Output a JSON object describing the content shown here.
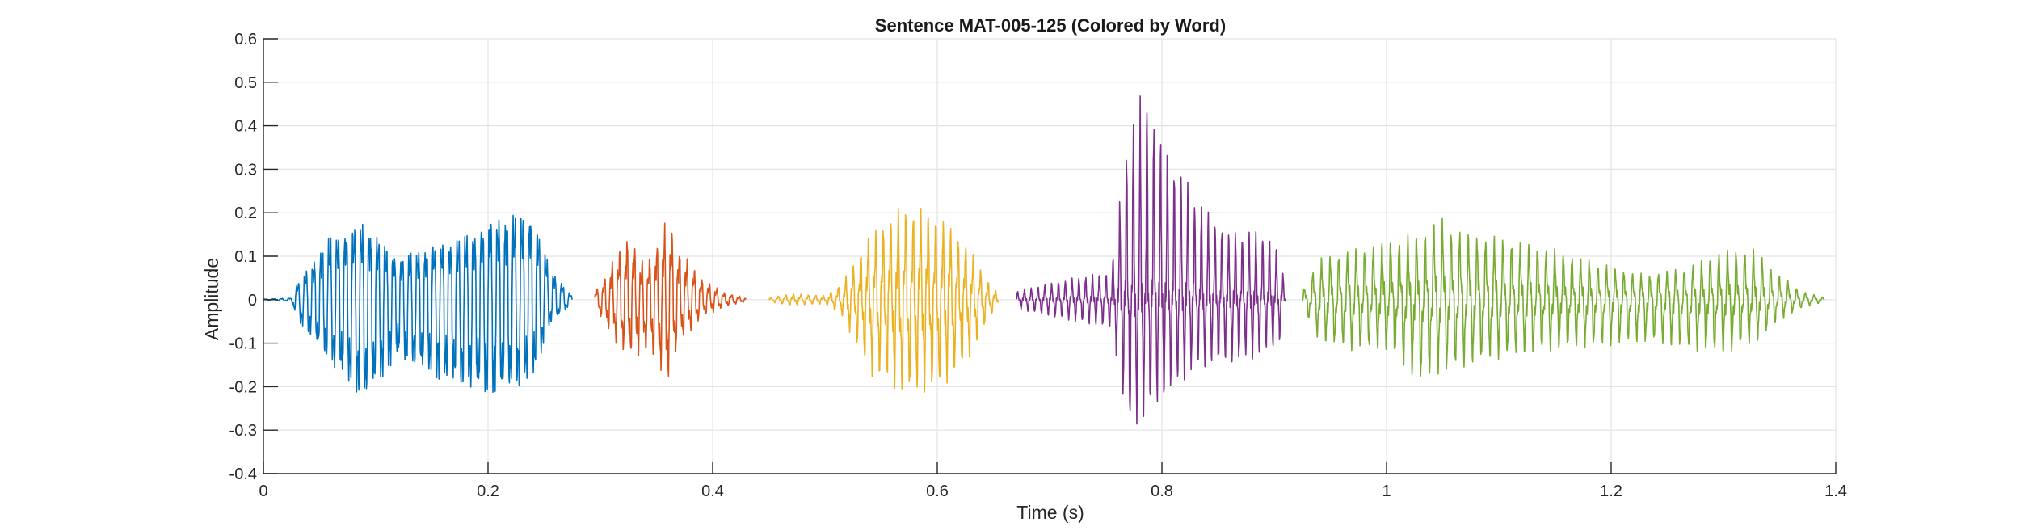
{
  "chart_data": {
    "type": "line",
    "title": "Sentence MAT-005-125 (Colored by Word)",
    "xlabel": "Time (s)",
    "ylabel": "Amplitude",
    "xlim": [
      0,
      1.4
    ],
    "ylim": [
      -0.4,
      0.6
    ],
    "xticks": [
      0,
      0.2,
      0.4,
      0.6,
      0.8,
      1,
      1.2,
      1.4
    ],
    "xtick_labels": [
      "0",
      "0.2",
      "0.4",
      "0.6",
      "0.8",
      "1",
      "1.2",
      "1.4"
    ],
    "yticks": [
      -0.4,
      -0.3,
      -0.2,
      -0.1,
      0,
      0.1,
      0.2,
      0.3,
      0.4,
      0.5,
      0.6
    ],
    "ytick_labels": [
      "-0.4",
      "-0.3",
      "-0.2",
      "-0.1",
      "0",
      "0.1",
      "0.2",
      "0.3",
      "0.4",
      "0.5",
      "0.6"
    ],
    "grid": true,
    "series": [
      {
        "color": "#0072BD",
        "t_start": 0.0,
        "t_end": 0.275,
        "pitch_hz": 140,
        "envelope_t": [
          0.0,
          0.025,
          0.03,
          0.06,
          0.09,
          0.12,
          0.15,
          0.18,
          0.21,
          0.24,
          0.255,
          0.275
        ],
        "envelope_pos": [
          0.002,
          0.005,
          0.05,
          0.2,
          0.24,
          0.13,
          0.17,
          0.2,
          0.26,
          0.27,
          0.1,
          0.01
        ],
        "envelope_neg": [
          0.002,
          0.005,
          0.06,
          0.2,
          0.32,
          0.18,
          0.24,
          0.28,
          0.3,
          0.25,
          0.08,
          0.01
        ]
      },
      {
        "color": "#D95319",
        "t_start": 0.295,
        "t_end": 0.43,
        "pitch_hz": 150,
        "envelope_t": [
          0.295,
          0.31,
          0.325,
          0.34,
          0.36,
          0.37,
          0.39,
          0.41,
          0.43
        ],
        "envelope_pos": [
          0.02,
          0.1,
          0.18,
          0.09,
          0.22,
          0.14,
          0.06,
          0.02,
          0.005
        ],
        "envelope_neg": [
          0.02,
          0.1,
          0.16,
          0.14,
          0.22,
          0.12,
          0.05,
          0.02,
          0.005
        ]
      },
      {
        "color": "#EDB120",
        "t_start": 0.45,
        "t_end": 0.655,
        "pitch_hz": 150,
        "envelope_t": [
          0.45,
          0.47,
          0.5,
          0.515,
          0.54,
          0.57,
          0.6,
          0.625,
          0.645,
          0.655
        ],
        "envelope_pos": [
          0.005,
          0.015,
          0.01,
          0.04,
          0.16,
          0.23,
          0.21,
          0.14,
          0.05,
          0.01
        ],
        "envelope_neg": [
          0.005,
          0.015,
          0.01,
          0.04,
          0.18,
          0.23,
          0.22,
          0.16,
          0.05,
          0.01
        ]
      },
      {
        "color": "#7E2F8E",
        "t_start": 0.67,
        "t_end": 0.91,
        "pitch_hz": 165,
        "envelope_t": [
          0.67,
          0.7,
          0.74,
          0.755,
          0.77,
          0.785,
          0.8,
          0.83,
          0.86,
          0.89,
          0.905,
          0.91
        ],
        "envelope_pos": [
          0.02,
          0.04,
          0.06,
          0.07,
          0.4,
          0.5,
          0.38,
          0.24,
          0.16,
          0.16,
          0.12,
          0.02
        ],
        "envelope_neg": [
          0.02,
          0.04,
          0.06,
          0.07,
          0.3,
          0.28,
          0.24,
          0.16,
          0.15,
          0.13,
          0.1,
          0.02
        ]
      },
      {
        "color": "#77AC30",
        "t_start": 0.925,
        "t_end": 1.39,
        "pitch_hz": 130,
        "envelope_t": [
          0.925,
          0.94,
          0.97,
          1.0,
          1.03,
          1.045,
          1.07,
          1.1,
          1.15,
          1.2,
          1.23,
          1.27,
          1.3,
          1.33,
          1.35,
          1.37,
          1.39
        ],
        "envelope_pos": [
          0.02,
          0.1,
          0.12,
          0.14,
          0.16,
          0.2,
          0.16,
          0.15,
          0.12,
          0.08,
          0.06,
          0.08,
          0.12,
          0.12,
          0.06,
          0.02,
          0.005
        ],
        "envelope_neg": [
          0.02,
          0.1,
          0.12,
          0.12,
          0.2,
          0.18,
          0.16,
          0.14,
          0.12,
          0.11,
          0.1,
          0.12,
          0.13,
          0.1,
          0.05,
          0.02,
          0.005
        ]
      }
    ]
  }
}
